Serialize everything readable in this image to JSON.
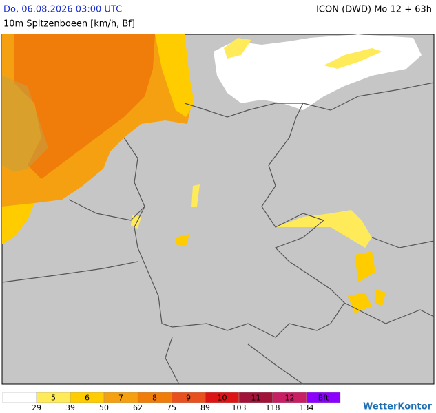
{
  "header": {
    "datetime": "Do, 06.08.2026 03:00 UTC",
    "model": "ICON (DWD) Mo 12 + 63h",
    "subtitle": "10m Spitzenboeen [km/h, Bf]"
  },
  "legend": {
    "colors": [
      "#ffffff",
      "#ffeb5a",
      "#ffcc00",
      "#f5a010",
      "#f07c0a",
      "#e8501e",
      "#dc1414",
      "#a01238",
      "#c81e64",
      "#8c00ff"
    ],
    "bf_labels": [
      "5",
      "6",
      "7",
      "8",
      "9",
      "10",
      "11",
      "12",
      "Bft"
    ],
    "kmh_thresholds": [
      29,
      39,
      50,
      62,
      75,
      89,
      103,
      118,
      134
    ]
  },
  "brand": "WetterKontor"
}
